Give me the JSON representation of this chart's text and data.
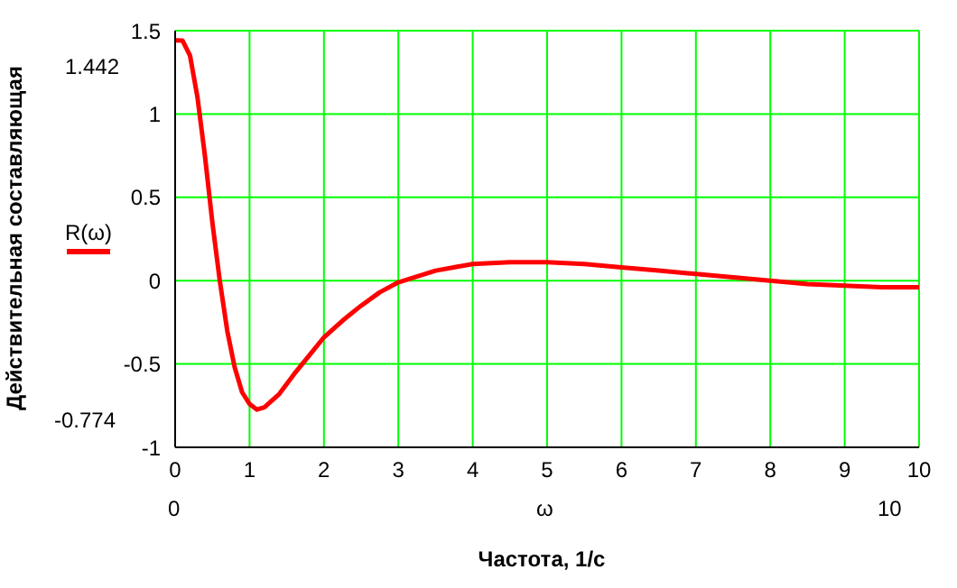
{
  "chart_data": {
    "type": "line",
    "xlabel": "Частота, 1/с",
    "ylabel": "Действительная составляющая",
    "annotations": [
      "1.442",
      "-0.774",
      "0",
      "10",
      "ω"
    ],
    "x": [
      0,
      0.1,
      0.2,
      0.3,
      0.4,
      0.5,
      0.6,
      0.7,
      0.8,
      0.9,
      1.0,
      1.1,
      1.2,
      1.4,
      1.6,
      1.8,
      2.0,
      2.25,
      2.5,
      2.75,
      3.0,
      3.5,
      4,
      4.5,
      5,
      5.5,
      6,
      6.5,
      7,
      7.5,
      8,
      8.5,
      9,
      9.5,
      10
    ],
    "series": [
      {
        "name": "R(ω)",
        "color": "#ff0000",
        "values": [
          1.442,
          1.44,
          1.35,
          1.1,
          0.75,
          0.35,
          0.0,
          -0.3,
          -0.52,
          -0.67,
          -0.74,
          -0.774,
          -0.76,
          -0.68,
          -0.56,
          -0.45,
          -0.34,
          -0.24,
          -0.15,
          -0.07,
          -0.01,
          0.06,
          0.1,
          0.11,
          0.11,
          0.1,
          0.08,
          0.06,
          0.04,
          0.02,
          0.0,
          -0.02,
          -0.03,
          -0.04,
          -0.04
        ]
      }
    ],
    "xlim": [
      0,
      10
    ],
    "xticks": [
      0,
      1,
      2,
      3,
      4,
      5,
      6,
      7,
      8,
      9,
      10
    ],
    "ylim": [
      -1,
      1.5
    ],
    "yticks": [
      -1,
      -0.5,
      0,
      0.5,
      1,
      1.5
    ],
    "grid": true,
    "legend": "left",
    "marker": "none",
    "line_style": "solid"
  }
}
